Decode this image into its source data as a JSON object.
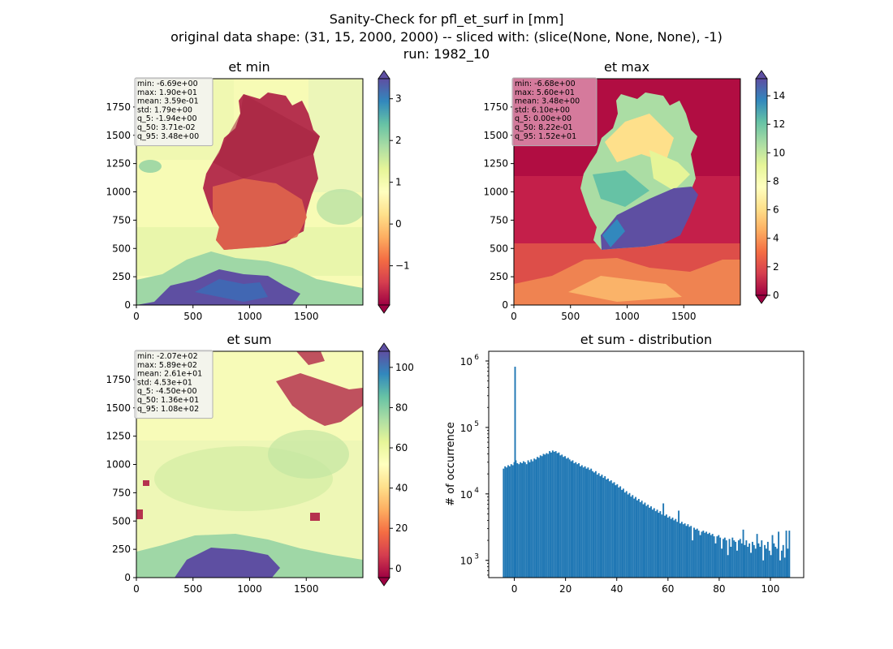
{
  "figure": {
    "title_lines": [
      "Sanity-Check for pfl_et_surf in [mm]",
      "original data shape: (31, 15, 2000, 2000) -- sliced with: (slice(None, None, None), -1)",
      "run: 1982_10"
    ]
  },
  "chart_data": [
    {
      "type": "heatmap",
      "title": "et min",
      "colormap": "Spectral",
      "xticks": [
        0,
        500,
        1000,
        1500
      ],
      "yticks": [
        0,
        250,
        500,
        750,
        1000,
        1250,
        1500,
        1750
      ],
      "xlim": [
        0,
        2000
      ],
      "ylim": [
        0,
        2000
      ],
      "colorbar": {
        "min": -1.94,
        "max": 3.48,
        "ticks": [
          -1,
          0,
          1,
          2,
          3
        ],
        "extend": "both"
      },
      "stats": [
        "min: -6.69e+00",
        "max: 1.90e+01",
        "mean: 3.59e-01",
        "std: 1.79e+00",
        "q_5: -1.94e+00",
        "q_50: 3.71e-02",
        "q_95: 3.48e+00"
      ],
      "stats_box_color": "#f2f2f2"
    },
    {
      "type": "heatmap",
      "title": "et max",
      "colormap": "Spectral",
      "xticks": [
        0,
        500,
        1000,
        1500
      ],
      "yticks": [
        0,
        250,
        500,
        750,
        1000,
        1250,
        1500,
        1750
      ],
      "xlim": [
        0,
        2000
      ],
      "ylim": [
        0,
        2000
      ],
      "colorbar": {
        "min": 0,
        "max": 15.2,
        "ticks": [
          0,
          2,
          4,
          6,
          8,
          10,
          12,
          14
        ],
        "extend": "both"
      },
      "stats": [
        "min: -6.68e+00",
        "max: 5.60e+01",
        "mean: 3.48e+00",
        "std: 6.10e+00",
        "q_5: 0.00e+00",
        "q_50: 8.22e-01",
        "q_95: 1.52e+01"
      ],
      "stats_box_color": "#d98aa8"
    },
    {
      "type": "heatmap",
      "title": "et sum",
      "colormap": "Spectral",
      "xticks": [
        0,
        500,
        1000,
        1500
      ],
      "yticks": [
        0,
        250,
        500,
        750,
        1000,
        1250,
        1500,
        1750
      ],
      "xlim": [
        0,
        2000
      ],
      "ylim": [
        0,
        2000
      ],
      "colorbar": {
        "min": -4.5,
        "max": 108,
        "ticks": [
          0,
          20,
          40,
          60,
          80,
          100
        ],
        "extend": "both"
      },
      "stats": [
        "min: -2.07e+02",
        "max: 5.89e+02",
        "mean: 2.61e+01",
        "std: 4.53e+01",
        "q_5: -4.50e+00",
        "q_50: 1.36e+01",
        "q_95: 1.08e+02"
      ],
      "stats_box_color": "#f2f2f2"
    },
    {
      "type": "bar",
      "title": "et sum - distribution",
      "ylabel": "# of occurrence",
      "yscale": "log",
      "xlim": [
        -10,
        113
      ],
      "ylim": [
        550,
        1400000
      ],
      "xticks": [
        0,
        20,
        40,
        60,
        80,
        100
      ],
      "yticks": [
        {
          "value": 1000,
          "label": "10",
          "sup": "3"
        },
        {
          "value": 10000,
          "label": "10",
          "sup": "4"
        },
        {
          "value": 100000,
          "label": "10",
          "sup": "5"
        },
        {
          "value": 1000000,
          "label": "10",
          "sup": "6"
        }
      ],
      "bar_color": "#1f77b4",
      "bin_width": 0.6,
      "bins": [
        [
          -4.5,
          24000
        ],
        [
          -3.9,
          26000
        ],
        [
          -3.3,
          25000
        ],
        [
          -2.7,
          27000
        ],
        [
          -2.1,
          26000
        ],
        [
          -1.5,
          28000
        ],
        [
          -0.9,
          27000
        ],
        [
          -0.3,
          30000
        ],
        [
          0.0,
          820000
        ],
        [
          0.3,
          32000
        ],
        [
          0.9,
          29000
        ],
        [
          1.5,
          28000
        ],
        [
          2.1,
          30000
        ],
        [
          2.7,
          29000
        ],
        [
          3.3,
          31000
        ],
        [
          3.9,
          30000
        ],
        [
          4.5,
          28000
        ],
        [
          5.1,
          32000
        ],
        [
          5.7,
          30000
        ],
        [
          6.3,
          33000
        ],
        [
          6.9,
          31000
        ],
        [
          7.5,
          34000
        ],
        [
          8.1,
          33000
        ],
        [
          8.7,
          36000
        ],
        [
          9.3,
          35000
        ],
        [
          9.9,
          38000
        ],
        [
          10.5,
          37000
        ],
        [
          11.1,
          40000
        ],
        [
          11.7,
          39000
        ],
        [
          12.3,
          41000
        ],
        [
          12.9,
          40000
        ],
        [
          13.5,
          44000
        ],
        [
          14.1,
          42000
        ],
        [
          14.7,
          45000
        ],
        [
          15.3,
          43000
        ],
        [
          15.9,
          44000
        ],
        [
          16.5,
          41000
        ],
        [
          17.1,
          42000
        ],
        [
          17.7,
          38000
        ],
        [
          18.3,
          39000
        ],
        [
          18.9,
          36000
        ],
        [
          19.5,
          37000
        ],
        [
          20.1,
          34000
        ],
        [
          20.7,
          35000
        ],
        [
          21.3,
          33000
        ],
        [
          21.9,
          31000
        ],
        [
          22.5,
          32000
        ],
        [
          23.1,
          29000
        ],
        [
          23.7,
          30000
        ],
        [
          24.3,
          28000
        ],
        [
          24.9,
          29000
        ],
        [
          25.5,
          26000
        ],
        [
          26.1,
          27000
        ],
        [
          26.7,
          25000
        ],
        [
          27.3,
          26000
        ],
        [
          27.9,
          24000
        ],
        [
          28.5,
          25000
        ],
        [
          29.1,
          23000
        ],
        [
          29.7,
          24000
        ],
        [
          30.3,
          22000
        ],
        [
          30.9,
          21000
        ],
        [
          31.5,
          22000
        ],
        [
          32.1,
          19500
        ],
        [
          32.7,
          20500
        ],
        [
          33.3,
          18500
        ],
        [
          33.9,
          19500
        ],
        [
          34.5,
          17500
        ],
        [
          35.1,
          18500
        ],
        [
          35.7,
          16500
        ],
        [
          36.3,
          17000
        ],
        [
          36.9,
          15500
        ],
        [
          37.5,
          16000
        ],
        [
          38.1,
          14500
        ],
        [
          38.7,
          15000
        ],
        [
          39.3,
          13500
        ],
        [
          39.9,
          14000
        ],
        [
          40.5,
          12500
        ],
        [
          41.1,
          13000
        ],
        [
          41.7,
          11500
        ],
        [
          42.3,
          12000
        ],
        [
          42.9,
          10500
        ],
        [
          43.5,
          11000
        ],
        [
          44.1,
          9800
        ],
        [
          44.7,
          10300
        ],
        [
          45.3,
          9100
        ],
        [
          45.9,
          9600
        ],
        [
          46.5,
          8500
        ],
        [
          47.1,
          9000
        ],
        [
          47.7,
          8000
        ],
        [
          48.3,
          8400
        ],
        [
          48.9,
          7500
        ],
        [
          49.5,
          7900
        ],
        [
          50.1,
          7000
        ],
        [
          50.7,
          7400
        ],
        [
          51.3,
          6600
        ],
        [
          51.9,
          6900
        ],
        [
          52.5,
          6200
        ],
        [
          53.1,
          6500
        ],
        [
          53.7,
          5800
        ],
        [
          54.3,
          6100
        ],
        [
          54.9,
          5500
        ],
        [
          55.5,
          5800
        ],
        [
          56.1,
          5200
        ],
        [
          56.7,
          5500
        ],
        [
          57.3,
          4900
        ],
        [
          57.9,
          7200
        ],
        [
          58.5,
          4700
        ],
        [
          59.1,
          4900
        ],
        [
          59.7,
          4400
        ],
        [
          60.3,
          4600
        ],
        [
          60.9,
          4200
        ],
        [
          61.5,
          4400
        ],
        [
          62.1,
          4000
        ],
        [
          62.7,
          4200
        ],
        [
          63.3,
          3800
        ],
        [
          63.9,
          5600
        ],
        [
          64.5,
          3600
        ],
        [
          65.1,
          3800
        ],
        [
          65.7,
          3500
        ],
        [
          66.3,
          3600
        ],
        [
          66.9,
          3300
        ],
        [
          67.5,
          3500
        ],
        [
          68.1,
          3200
        ],
        [
          68.7,
          3300
        ],
        [
          69.3,
          2000
        ],
        [
          69.9,
          3100
        ],
        [
          70.5,
          2900
        ],
        [
          71.1,
          3000
        ],
        [
          71.7,
          2800
        ],
        [
          72.3,
          2400
        ],
        [
          72.9,
          2700
        ],
        [
          73.5,
          2800
        ],
        [
          74.1,
          2600
        ],
        [
          74.7,
          2700
        ],
        [
          75.3,
          2500
        ],
        [
          75.9,
          2600
        ],
        [
          76.5,
          2400
        ],
        [
          77.1,
          2500
        ],
        [
          77.7,
          2300
        ],
        [
          78.3,
          1800
        ],
        [
          78.9,
          2300
        ],
        [
          79.5,
          2400
        ],
        [
          80.1,
          2200
        ],
        [
          80.7,
          1500
        ],
        [
          81.3,
          2100
        ],
        [
          81.9,
          2200
        ],
        [
          82.5,
          2000
        ],
        [
          83.1,
          1200
        ],
        [
          83.7,
          2100
        ],
        [
          84.3,
          1600
        ],
        [
          84.9,
          2200
        ],
        [
          85.5,
          2000
        ],
        [
          86.1,
          1900
        ],
        [
          86.7,
          1400
        ],
        [
          87.3,
          2000
        ],
        [
          87.9,
          2100
        ],
        [
          88.5,
          1800
        ],
        [
          89.1,
          2900
        ],
        [
          89.7,
          1700
        ],
        [
          90.3,
          2000
        ],
        [
          90.9,
          1600
        ],
        [
          91.5,
          1800
        ],
        [
          92.1,
          1300
        ],
        [
          92.7,
          1900
        ],
        [
          93.3,
          1700
        ],
        [
          93.9,
          1500
        ],
        [
          94.5,
          2500
        ],
        [
          95.1,
          1800
        ],
        [
          95.7,
          1600
        ],
        [
          96.3,
          2000
        ],
        [
          96.9,
          1000
        ],
        [
          97.5,
          1700
        ],
        [
          98.1,
          1500
        ],
        [
          98.7,
          1900
        ],
        [
          99.3,
          1400
        ],
        [
          99.9,
          1200
        ],
        [
          100.5,
          2400
        ],
        [
          101.1,
          1800
        ],
        [
          101.7,
          1600
        ],
        [
          102.3,
          1500
        ],
        [
          102.9,
          2700
        ],
        [
          103.5,
          1000
        ],
        [
          104.1,
          1400
        ],
        [
          104.7,
          1700
        ],
        [
          105.3,
          1100
        ],
        [
          105.9,
          2800
        ],
        [
          106.5,
          1500
        ],
        [
          107.1,
          2800
        ]
      ]
    }
  ]
}
